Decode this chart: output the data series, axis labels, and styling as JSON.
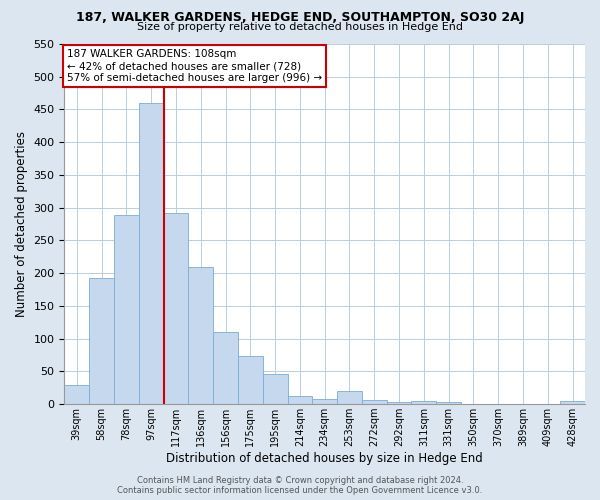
{
  "title": "187, WALKER GARDENS, HEDGE END, SOUTHAMPTON, SO30 2AJ",
  "subtitle": "Size of property relative to detached houses in Hedge End",
  "xlabel": "Distribution of detached houses by size in Hedge End",
  "ylabel": "Number of detached properties",
  "bar_color": "#c5d8ee",
  "bar_edge_color": "#7aadd4",
  "background_color": "#dce6f0",
  "plot_bg_color": "#ffffff",
  "grid_color": "#b8cfe0",
  "categories": [
    "39sqm",
    "58sqm",
    "78sqm",
    "97sqm",
    "117sqm",
    "136sqm",
    "156sqm",
    "175sqm",
    "195sqm",
    "214sqm",
    "234sqm",
    "253sqm",
    "272sqm",
    "292sqm",
    "311sqm",
    "331sqm",
    "350sqm",
    "370sqm",
    "389sqm",
    "409sqm",
    "428sqm"
  ],
  "values": [
    30,
    192,
    289,
    460,
    292,
    210,
    110,
    73,
    46,
    13,
    8,
    20,
    7,
    3,
    5,
    3,
    0,
    0,
    0,
    0,
    5
  ],
  "ylim": [
    0,
    550
  ],
  "yticks": [
    0,
    50,
    100,
    150,
    200,
    250,
    300,
    350,
    400,
    450,
    500,
    550
  ],
  "vline_color": "#cc0000",
  "annotation_title": "187 WALKER GARDENS: 108sqm",
  "annotation_line1": "← 42% of detached houses are smaller (728)",
  "annotation_line2": "57% of semi-detached houses are larger (996) →",
  "annotation_box_color": "#ffffff",
  "annotation_box_edge": "#cc0000",
  "footer_line1": "Contains HM Land Registry data © Crown copyright and database right 2024.",
  "footer_line2": "Contains public sector information licensed under the Open Government Licence v3.0."
}
